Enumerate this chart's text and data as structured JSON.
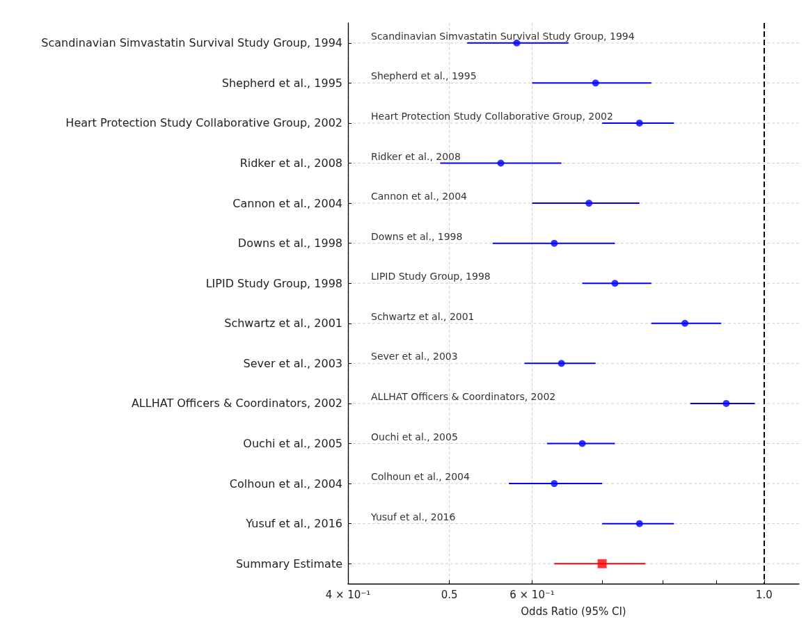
{
  "chart_data": {
    "type": "scatter",
    "orientation": "horizontal",
    "xlabel": "Odds Ratio (95% CI)",
    "categories": [
      "Scandinavian Simvastatin Survival Study Group, 1994",
      "Shepherd et al., 1995",
      "Heart Protection Study Collaborative Group, 2002",
      "Ridker et al., 2008",
      "Cannon et al., 2004",
      "Downs et al., 1998",
      "LIPID Study Group, 1998",
      "Schwartz et al., 2001",
      "Sever et al., 2003",
      "ALLHAT Officers & Coordinators, 2002",
      "Ouchi et al., 2005",
      "Colhoun et al., 2004",
      "Yusuf et al., 2016",
      "Summary Estimate"
    ],
    "series": [
      {
        "color": "#0000ff",
        "marker": "circle",
        "values": [
          0.58,
          0.69,
          0.76,
          0.56,
          0.68,
          0.63,
          0.72,
          0.84,
          0.64,
          0.92,
          0.67,
          0.63,
          0.76,
          null
        ],
        "errors": [
          [
            0.52,
            0.65
          ],
          [
            0.6,
            0.78
          ],
          [
            0.7,
            0.82
          ],
          [
            0.49,
            0.64
          ],
          [
            0.6,
            0.76
          ],
          [
            0.55,
            0.72
          ],
          [
            0.67,
            0.78
          ],
          [
            0.78,
            0.91
          ],
          [
            0.59,
            0.69
          ],
          [
            0.85,
            0.98
          ],
          [
            0.62,
            0.72
          ],
          [
            0.57,
            0.7
          ],
          [
            0.7,
            0.82
          ],
          null
        ]
      },
      {
        "color": "#ff0000",
        "marker": "square",
        "values": [
          null,
          null,
          null,
          null,
          null,
          null,
          null,
          null,
          null,
          null,
          null,
          null,
          null,
          0.7
        ],
        "errors": [
          null,
          null,
          null,
          null,
          null,
          null,
          null,
          null,
          null,
          null,
          null,
          null,
          null,
          [
            0.63,
            0.77
          ]
        ]
      }
    ],
    "log": "x",
    "xlim": [
      0.4,
      1.08
    ],
    "xticks": [
      {
        "value": 0.4,
        "label": "4 × 10⁻¹"
      },
      0.5,
      {
        "value": 0.6,
        "label": "6 × 10⁻¹"
      },
      {
        "value": 0.7,
        "label": null
      },
      {
        "value": 0.8,
        "label": null
      },
      {
        "value": 0.9,
        "label": null
      },
      {
        "value": 1,
        "label": "1.0"
      }
    ],
    "ref_lines": [
      {
        "axis": "x",
        "value": 1,
        "color": "#000000",
        "line_style": "dashed"
      }
    ],
    "annotations": [
      "Scandinavian Simvastatin Survival Study Group, 1994",
      "Shepherd et al., 1995",
      "Heart Protection Study Collaborative Group, 2002",
      "Ridker et al., 2008",
      "Cannon et al., 2004",
      "Downs et al., 1998",
      "LIPID Study Group, 1998",
      "Schwartz et al., 2001",
      "Sever et al., 2003",
      "ALLHAT Officers & Coordinators, 2002",
      "Ouchi et al., 2005",
      "Colhoun et al., 2004",
      "Yusuf et al., 2016"
    ],
    "grid": true
  }
}
